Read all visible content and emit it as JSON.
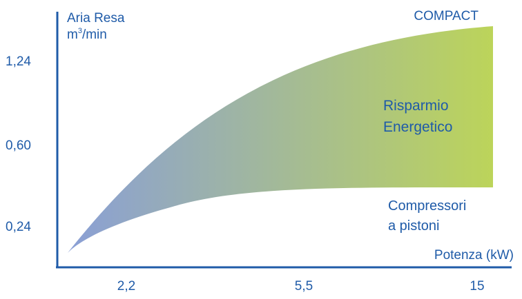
{
  "chart_data": {
    "type": "area",
    "title": "",
    "ylabel_line1": "Aria Resa",
    "ylabel_unit_base": "m",
    "ylabel_unit_sup": "3",
    "ylabel_unit_rest": "/min",
    "xlabel": "Potenza  (kW)",
    "x_ticks": [
      "2,2",
      "5,5",
      "15"
    ],
    "y_ticks": [
      "1,24",
      "0,60",
      "0,24"
    ],
    "upper_curve_label": "COMPACT",
    "band_label": [
      "Risparmio",
      "Energetico"
    ],
    "lower_curve_label": [
      "Compressori",
      "a pistoni"
    ],
    "series": [
      {
        "name": "COMPACT",
        "x": [
          2.2,
          5.5,
          15
        ],
        "y": [
          0.24,
          0.95,
          1.35
        ]
      },
      {
        "name": "Compressori a pistoni",
        "x": [
          2.2,
          5.5,
          15
        ],
        "y": [
          0.24,
          0.4,
          0.5
        ]
      }
    ],
    "colors": {
      "axis": "#1f5ba8",
      "text": "#1f5ba8",
      "gradient_start": "#8a9fd6",
      "gradient_end": "#bcd45a"
    }
  }
}
